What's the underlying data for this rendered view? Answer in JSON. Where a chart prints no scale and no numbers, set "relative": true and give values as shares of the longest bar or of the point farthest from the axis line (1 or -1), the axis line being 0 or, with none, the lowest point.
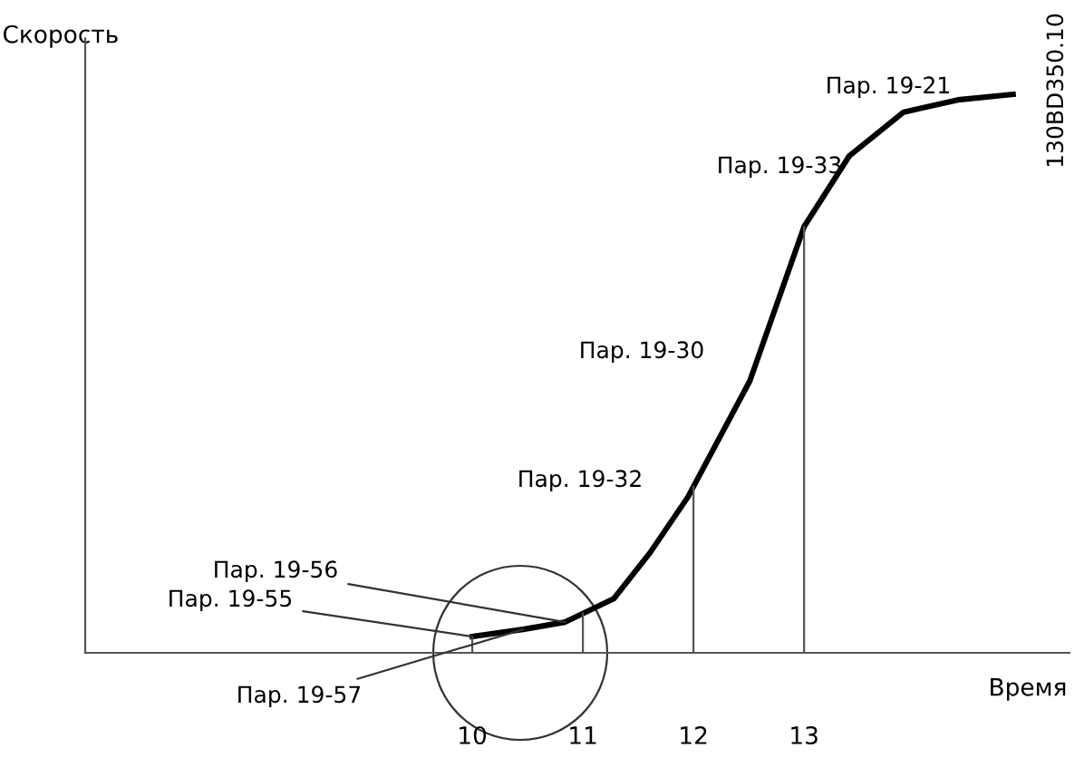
{
  "chart_data": {
    "type": "line",
    "relative": true,
    "xlabel": "Время",
    "ylabel": "Скорость",
    "x": [
      10.0,
      10.46,
      10.84,
      11.28,
      11.61,
      11.95,
      12.51,
      13.0,
      13.41,
      13.9,
      14.39,
      14.89
    ],
    "series": [
      {
        "color": "#000000",
        "values": [
          0.029,
          0.042,
          0.055,
          0.097,
          0.18,
          0.279,
          0.487,
          0.763,
          0.89,
          0.968,
          0.99,
          1.0
        ]
      }
    ],
    "xlim": [
      6.5,
      15.4
    ],
    "xticks": [
      10,
      11,
      12,
      13
    ],
    "marker": "none",
    "line_style": "solid",
    "grid": false,
    "legend": false,
    "ref_lines": [
      {
        "axis": "x",
        "value": 12,
        "color": "#555555"
      },
      {
        "axis": "x",
        "value": 13,
        "color": "#555555"
      }
    ],
    "annotations": [
      "Пар. 19-21",
      {
        "text": "Пар. 19-33",
        "x": 13.0,
        "y": 0.763
      },
      "Пар. 19-30",
      "Пар. 19-32",
      {
        "text": "Пар. 19-56",
        "x": 10.84,
        "y": 0.055
      },
      {
        "text": "Пар. 19-55",
        "x": 10.0,
        "y": 0.029
      },
      {
        "text": "Пар. 19-57",
        "x": 10.46,
        "y": 0.042
      },
      "130BD350.10"
    ]
  }
}
